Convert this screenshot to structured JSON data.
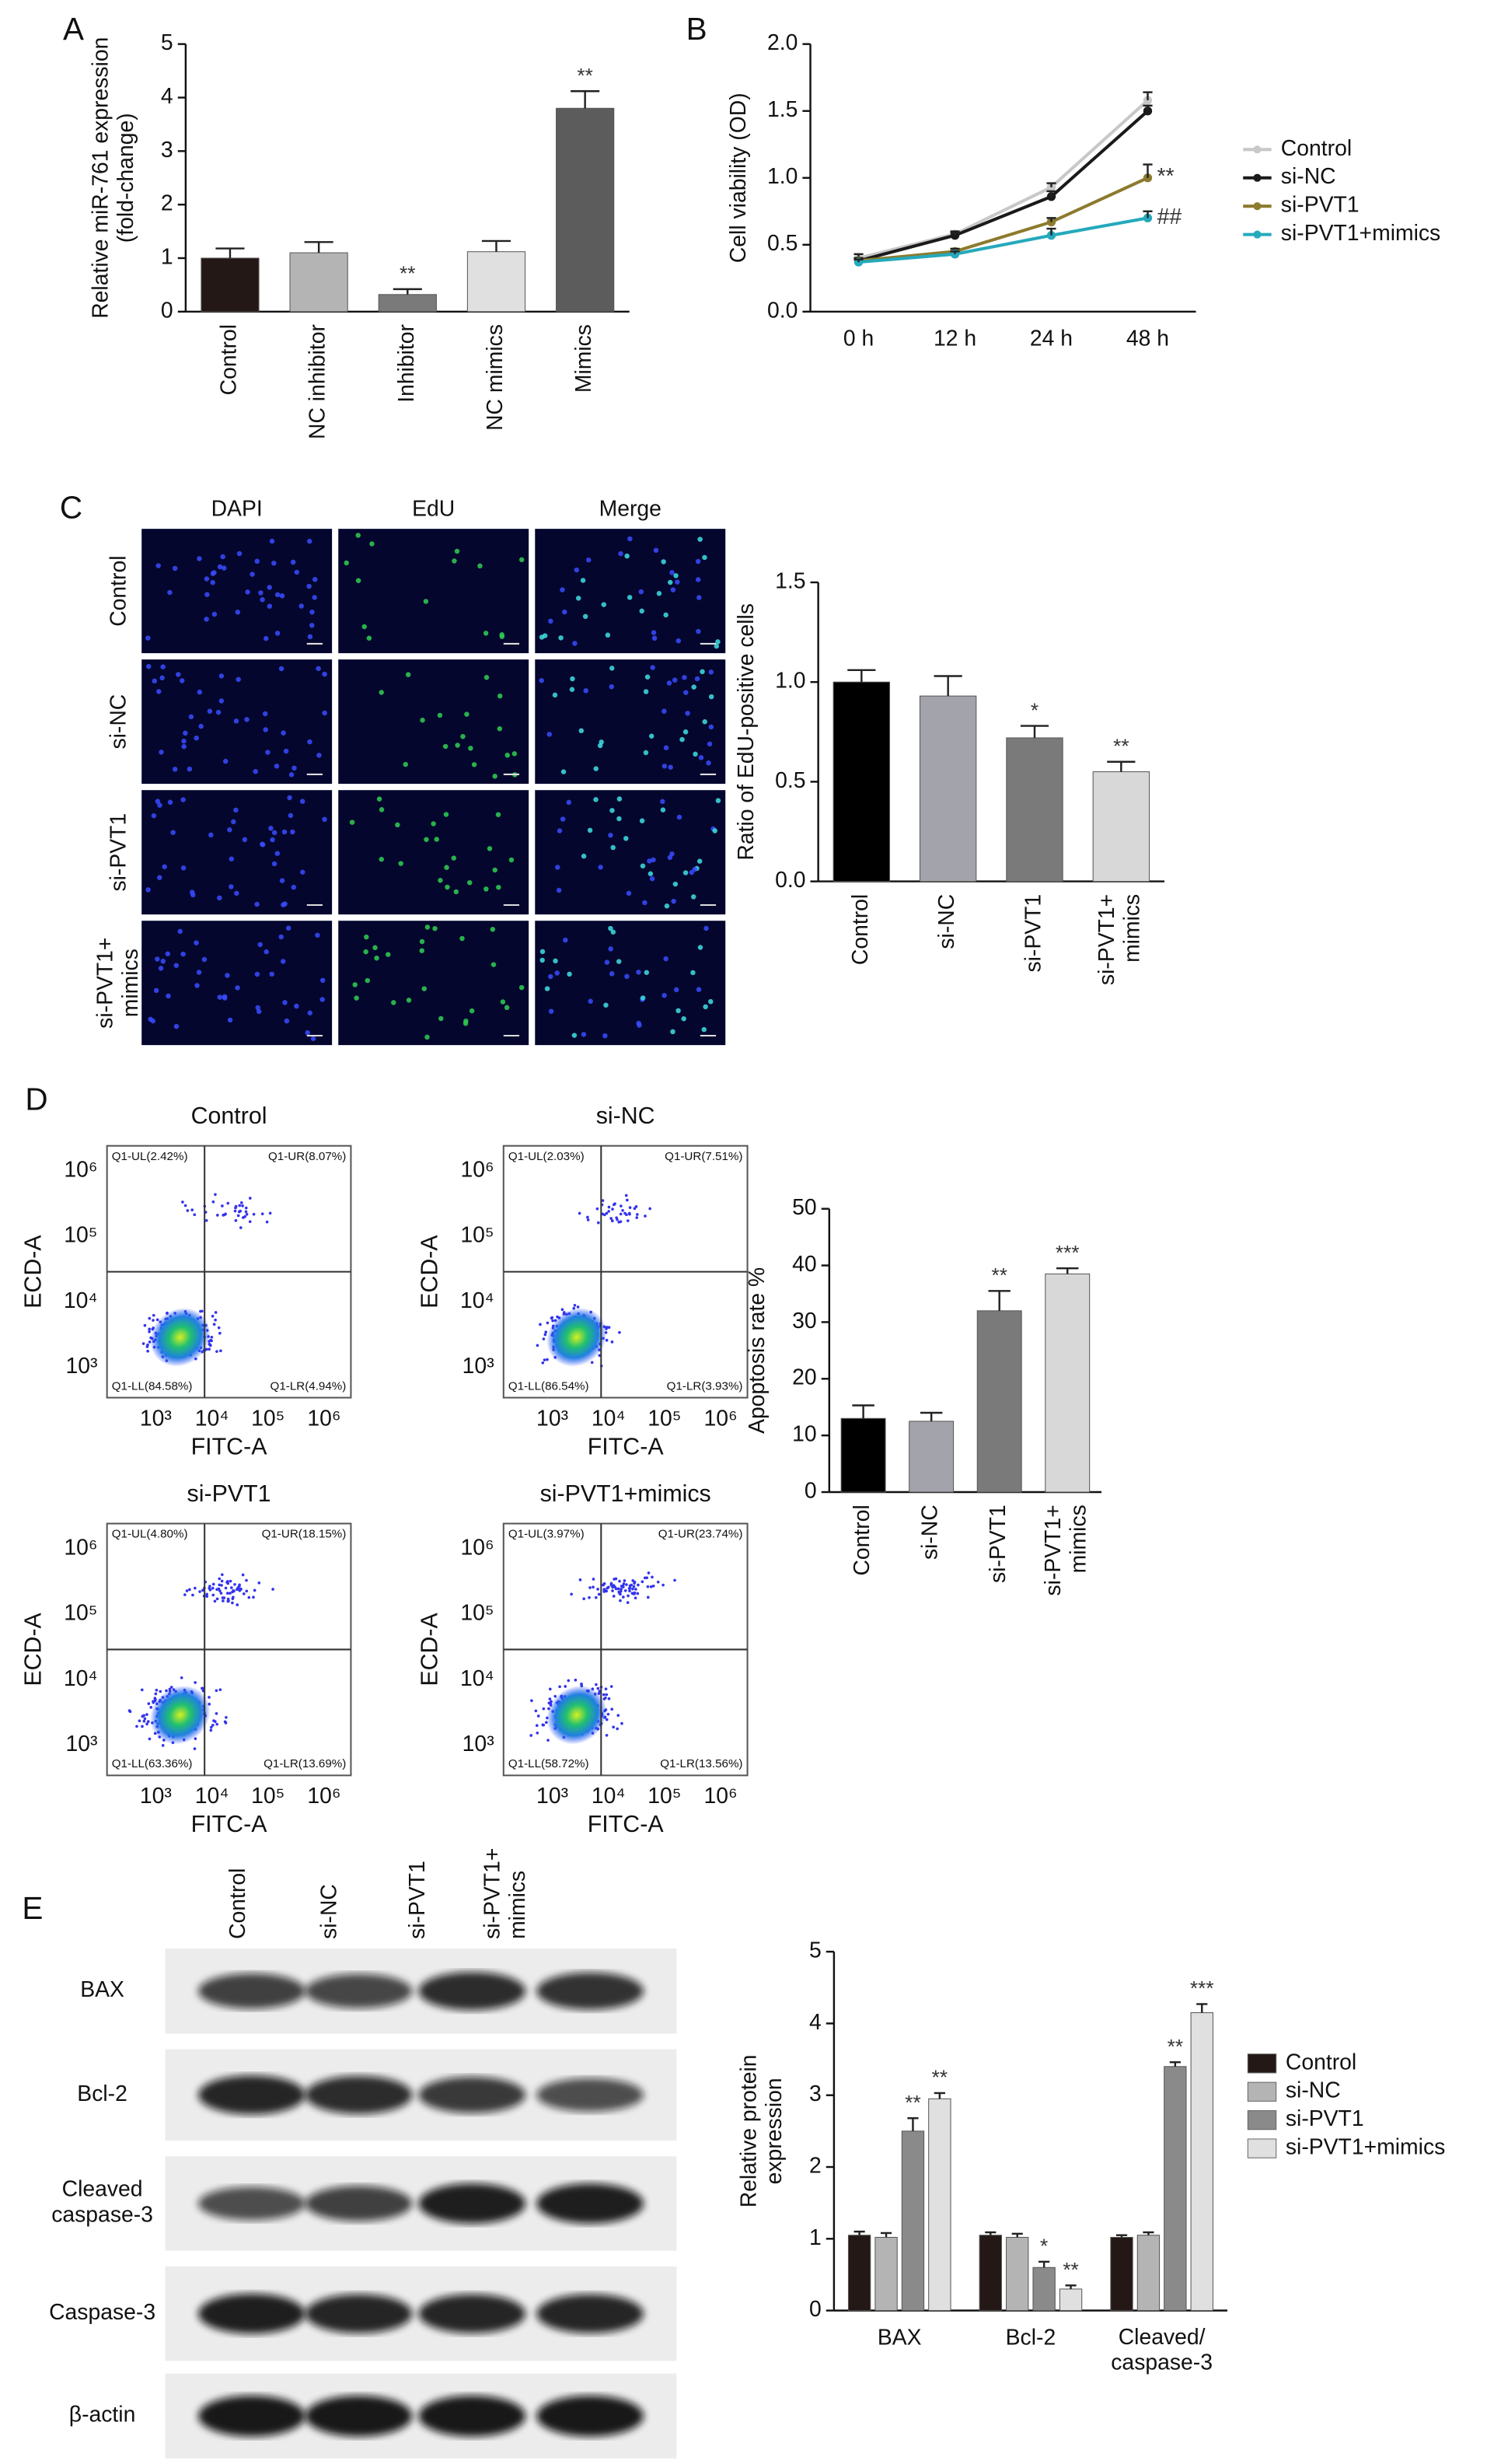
{
  "chart_data": [
    {
      "type": "bar",
      "panel": "A",
      "y_label": "Relative miR-761 expression\n(fold-change)",
      "categories": [
        "Control",
        "NC inhibitor",
        "Inhibitor",
        "NC mimics",
        "Mimics"
      ],
      "values": [
        1.0,
        1.1,
        0.32,
        1.12,
        3.8
      ],
      "errors": [
        0.18,
        0.2,
        0.1,
        0.2,
        0.32
      ],
      "colors": [
        "#231815",
        "#b4b4b4",
        "#7a7a7a",
        "#e0e0e0",
        "#5c5c5c"
      ],
      "significance": [
        null,
        null,
        "**",
        null,
        "**"
      ],
      "ylim": [
        0,
        5
      ],
      "yticks": [
        0,
        1,
        2,
        3,
        4,
        5
      ]
    },
    {
      "type": "line",
      "panel": "B",
      "y_label": "Cell viability (OD)",
      "categories": [
        "0 h",
        "12 h",
        "24 h",
        "48 h"
      ],
      "series": [
        {
          "name": "Control",
          "color": "#c8c8c8",
          "values": [
            0.4,
            0.58,
            0.93,
            1.58
          ],
          "errors": [
            0.03,
            0.02,
            0.03,
            0.06
          ],
          "significance": [
            null,
            null,
            null,
            null
          ]
        },
        {
          "name": "si-NC",
          "color": "#1a1a1a",
          "values": [
            0.38,
            0.57,
            0.86,
            1.5
          ],
          "errors": [
            0.02,
            0.02,
            0.04,
            0.04
          ],
          "significance": [
            null,
            null,
            null,
            null
          ]
        },
        {
          "name": "si-PVT1",
          "color": "#8c7b2e",
          "values": [
            0.38,
            0.45,
            0.67,
            1.0
          ],
          "errors": [
            0.02,
            0.02,
            0.03,
            0.1
          ],
          "significance": [
            null,
            null,
            null,
            "**"
          ]
        },
        {
          "name": "si-PVT1+mimics",
          "color": "#25a9bc",
          "values": [
            0.37,
            0.43,
            0.57,
            0.7
          ],
          "errors": [
            0.02,
            0.02,
            0.05,
            0.05
          ],
          "significance": [
            null,
            null,
            null,
            "##"
          ]
        }
      ],
      "ylim": [
        0,
        2
      ],
      "yticks": [
        {
          "value": 0,
          "label": "0.0"
        },
        0.5,
        {
          "value": 1,
          "label": "1.0"
        },
        1.5,
        {
          "value": 2,
          "label": "2.0"
        }
      ],
      "legend": "right"
    },
    {
      "type": "image-grid",
      "panel": "C",
      "columns": [
        "DAPI",
        "EdU",
        "Merge"
      ],
      "rows": [
        "Control",
        "si-NC",
        "si-PVT1",
        "si-PVT1+\nmimics"
      ]
    },
    {
      "type": "bar",
      "y_label": "Ratio of EdU-positive cells",
      "categories": [
        "Control",
        "si-NC",
        "si-PVT1",
        "si-PVT1+\nmimics"
      ],
      "values": [
        1.0,
        0.93,
        0.72,
        0.55
      ],
      "errors": [
        0.06,
        0.1,
        0.06,
        0.05
      ],
      "colors": [
        "#000000",
        "#a3a3ab",
        "#7a7a7a",
        "#d8d8d8"
      ],
      "significance": [
        null,
        null,
        "*",
        "**"
      ],
      "ylim": [
        0,
        1.5
      ],
      "yticks": [
        {
          "value": 0,
          "label": "0.0"
        },
        0.5,
        {
          "value": 1,
          "label": "1.0"
        },
        1.5
      ]
    },
    {
      "type": "flow",
      "panel": "D",
      "x_label": "FITC-A",
      "y_label": "ECD-A",
      "ticks": [
        "10³",
        "10⁴",
        "10⁵",
        "10⁶"
      ],
      "plots": [
        {
          "title": "Control",
          "quadrants": [
            "Q1-UL(2.42%)",
            "Q1-UR(8.07%)",
            "Q1-LL(84.58%)",
            "Q1-LR(4.94%)"
          ]
        },
        {
          "title": "si-NC",
          "quadrants": [
            "Q1-UL(2.03%)",
            "Q1-UR(7.51%)",
            "Q1-LL(86.54%)",
            "Q1-LR(3.93%)"
          ]
        },
        {
          "title": "si-PVT1",
          "quadrants": [
            "Q1-UL(4.80%)",
            "Q1-UR(18.15%)",
            "Q1-LL(63.36%)",
            "Q1-LR(13.69%)"
          ]
        },
        {
          "title": "si-PVT1+mimics",
          "quadrants": [
            "Q1-UL(3.97%)",
            "Q1-UR(23.74%)",
            "Q1-LL(58.72%)",
            "Q1-LR(13.56%)"
          ]
        }
      ]
    },
    {
      "type": "bar",
      "y_label": "Apoptosis rate %",
      "categories": [
        "Control",
        "si-NC",
        "si-PVT1",
        "si-PVT1+\nmimics"
      ],
      "values": [
        13,
        12.5,
        32,
        38.5
      ],
      "errors": [
        2.3,
        1.5,
        3.5,
        1.0
      ],
      "colors": [
        "#000000",
        "#a3a3ab",
        "#7a7a7a",
        "#d8d8d8"
      ],
      "significance": [
        null,
        null,
        "**",
        "***"
      ],
      "ylim": [
        0,
        50
      ],
      "yticks": [
        0,
        10,
        20,
        30,
        40,
        50
      ]
    },
    {
      "type": "blot",
      "panel": "E",
      "lanes": [
        "Control",
        "si-NC",
        "si-PVT1",
        "si-PVT1+\nmimics"
      ],
      "rows": [
        "BAX",
        "Bcl-2",
        "Cleaved\ncaspase-3",
        "Caspase-3",
        "β-actin"
      ]
    },
    {
      "type": "bar",
      "y_label": "Relative protein\nexpression",
      "categories": [
        "BAX",
        "Bcl-2",
        "Cleaved/\ncaspase-3"
      ],
      "series": [
        {
          "name": "Control",
          "color": "#231815",
          "values": [
            1.05,
            1.05,
            1.02
          ],
          "errors": [
            0.05,
            0.04,
            0.03
          ],
          "significance": [
            null,
            null,
            null
          ]
        },
        {
          "name": "si-NC",
          "color": "#b4b4b4",
          "values": [
            1.02,
            1.02,
            1.05
          ],
          "errors": [
            0.06,
            0.05,
            0.04
          ],
          "significance": [
            null,
            null,
            null
          ]
        },
        {
          "name": "si-PVT1",
          "color": "#8a8a8a",
          "values": [
            2.5,
            0.6,
            3.4
          ],
          "errors": [
            0.18,
            0.08,
            0.06
          ],
          "significance": [
            "**",
            "*",
            "**"
          ]
        },
        {
          "name": "si-PVT1+mimics",
          "color": "#e0e0e0",
          "values": [
            2.95,
            0.3,
            4.15
          ],
          "errors": [
            0.08,
            0.05,
            0.12
          ],
          "significance": [
            "**",
            "**",
            "***"
          ]
        }
      ],
      "ylim": [
        0,
        5
      ],
      "yticks": [
        0,
        1,
        2,
        3,
        4,
        5
      ],
      "legend": "right"
    }
  ]
}
